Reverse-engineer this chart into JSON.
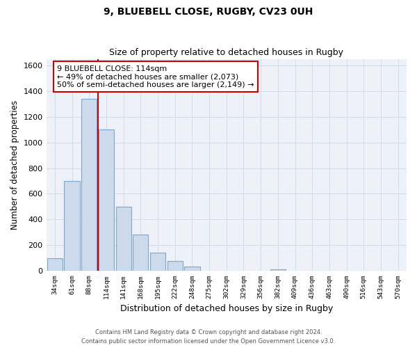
{
  "title1": "9, BLUEBELL CLOSE, RUGBY, CV23 0UH",
  "title2": "Size of property relative to detached houses in Rugby",
  "xlabel": "Distribution of detached houses by size in Rugby",
  "ylabel": "Number of detached properties",
  "bin_labels": [
    "34sqm",
    "61sqm",
    "88sqm",
    "114sqm",
    "141sqm",
    "168sqm",
    "195sqm",
    "222sqm",
    "248sqm",
    "275sqm",
    "302sqm",
    "329sqm",
    "356sqm",
    "382sqm",
    "409sqm",
    "436sqm",
    "463sqm",
    "490sqm",
    "516sqm",
    "543sqm",
    "570sqm"
  ],
  "bar_values": [
    100,
    700,
    1340,
    1100,
    500,
    285,
    140,
    80,
    35,
    0,
    0,
    0,
    0,
    15,
    0,
    0,
    0,
    0,
    0,
    0,
    0
  ],
  "bar_color": "#ccdaeb",
  "bar_edge_color": "#7ba8cc",
  "vline_x_index": 3,
  "vline_color": "#cc0000",
  "annotation_line1": "9 BLUEBELL CLOSE: 114sqm",
  "annotation_line2": "← 49% of detached houses are smaller (2,073)",
  "annotation_line3": "50% of semi-detached houses are larger (2,149) →",
  "annotation_box_color": "#ffffff",
  "annotation_box_edge_color": "#cc0000",
  "ylim": [
    0,
    1650
  ],
  "yticks": [
    0,
    200,
    400,
    600,
    800,
    1000,
    1200,
    1400,
    1600
  ],
  "footer1": "Contains HM Land Registry data © Crown copyright and database right 2024.",
  "footer2": "Contains public sector information licensed under the Open Government Licence v3.0.",
  "grid_color": "#d0dce8",
  "bg_color": "#eef2f8"
}
